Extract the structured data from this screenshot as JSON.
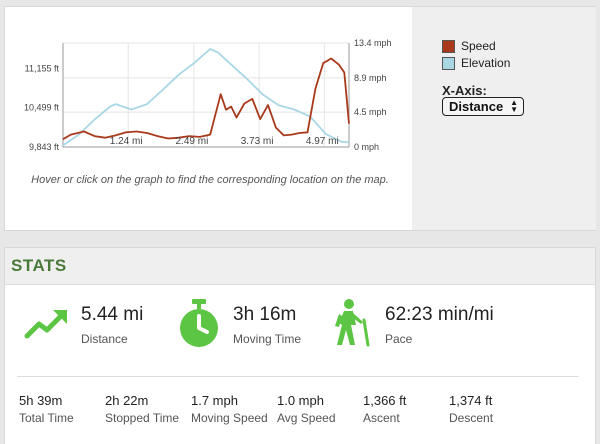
{
  "chart_data": {
    "type": "line",
    "x_ticks": [
      "1.24 mi",
      "2.49 mi",
      "3.73 mi",
      "4.97 mi"
    ],
    "x_tick_values": [
      1.24,
      2.49,
      3.73,
      4.97
    ],
    "x_range": [
      0,
      5.44
    ],
    "y_left_ticks": [
      "11,155 ft",
      "10,499 ft",
      "9,843 ft"
    ],
    "y_left_tick_values": [
      11155,
      10499,
      9843
    ],
    "y_left_range": [
      9843,
      11580
    ],
    "y_right_ticks": [
      "13.4 mph",
      "8.9 mph",
      "4.5 mph",
      "0 mph"
    ],
    "y_right_tick_values": [
      13.4,
      8.9,
      4.5,
      0
    ],
    "y_right_range": [
      0,
      13.4
    ],
    "grid": true,
    "series": [
      {
        "name": "Speed",
        "color": "#a8391a",
        "axis": "right",
        "x": [
          0,
          0.15,
          0.4,
          0.6,
          0.8,
          1.0,
          1.2,
          1.4,
          1.6,
          1.8,
          2.0,
          2.2,
          2.4,
          2.6,
          2.8,
          3.0,
          3.1,
          3.2,
          3.3,
          3.45,
          3.6,
          3.75,
          3.9,
          4.05,
          4.2,
          4.35,
          4.5,
          4.65,
          4.8,
          4.95,
          5.1,
          5.25,
          5.35,
          5.44
        ],
        "values": [
          1.0,
          1.6,
          2.0,
          1.4,
          1.2,
          1.5,
          1.9,
          2.0,
          1.8,
          1.4,
          1.1,
          1.2,
          1.4,
          1.3,
          1.6,
          6.8,
          4.8,
          5.2,
          3.8,
          5.6,
          6.2,
          3.6,
          5.4,
          2.5,
          1.5,
          1.6,
          1.8,
          1.9,
          7.5,
          10.8,
          11.4,
          10.6,
          9.6,
          3.0
        ]
      },
      {
        "name": "Elevation",
        "color": "#a9d7e6",
        "axis": "left",
        "x": [
          0,
          0.3,
          0.6,
          0.9,
          1.0,
          1.3,
          1.6,
          1.9,
          2.2,
          2.5,
          2.8,
          2.95,
          3.2,
          3.5,
          3.8,
          4.1,
          4.4,
          4.7,
          5.0,
          5.3,
          5.44
        ],
        "values": [
          9870,
          10050,
          10300,
          10520,
          10560,
          10470,
          10560,
          10800,
          11050,
          11250,
          11480,
          11420,
          11220,
          10980,
          10720,
          10540,
          10470,
          10350,
          10060,
          9930,
          9920
        ]
      }
    ]
  },
  "legend": [
    {
      "label": "Speed",
      "color": "#a8391a"
    },
    {
      "label": "Elevation",
      "color": "#a9d7e6"
    }
  ],
  "xaxis": {
    "label": "X-Axis:",
    "selected": "Distance"
  },
  "chart_hint": "Hover or click on the graph to find the corresponding location on the map.",
  "stats": {
    "title": "STATS",
    "accent_color": "#5cc544",
    "big": [
      {
        "icon": "trending-up-icon",
        "value": "5.44 mi",
        "label": "Distance"
      },
      {
        "icon": "stopwatch-icon",
        "value": "3h 16m",
        "label": "Moving Time"
      },
      {
        "icon": "hiker-icon",
        "value": "62:23 min/mi",
        "label": "Pace"
      }
    ],
    "small": [
      {
        "value": "5h 39m",
        "label": "Total Time"
      },
      {
        "value": "2h 22m",
        "label": "Stopped Time"
      },
      {
        "value": "1.7 mph",
        "label": "Moving Speed"
      },
      {
        "value": "1.0 mph",
        "label": "Avg Speed"
      },
      {
        "value": "1,366 ft",
        "label": "Ascent"
      },
      {
        "value": "1,374 ft",
        "label": "Descent"
      }
    ]
  }
}
